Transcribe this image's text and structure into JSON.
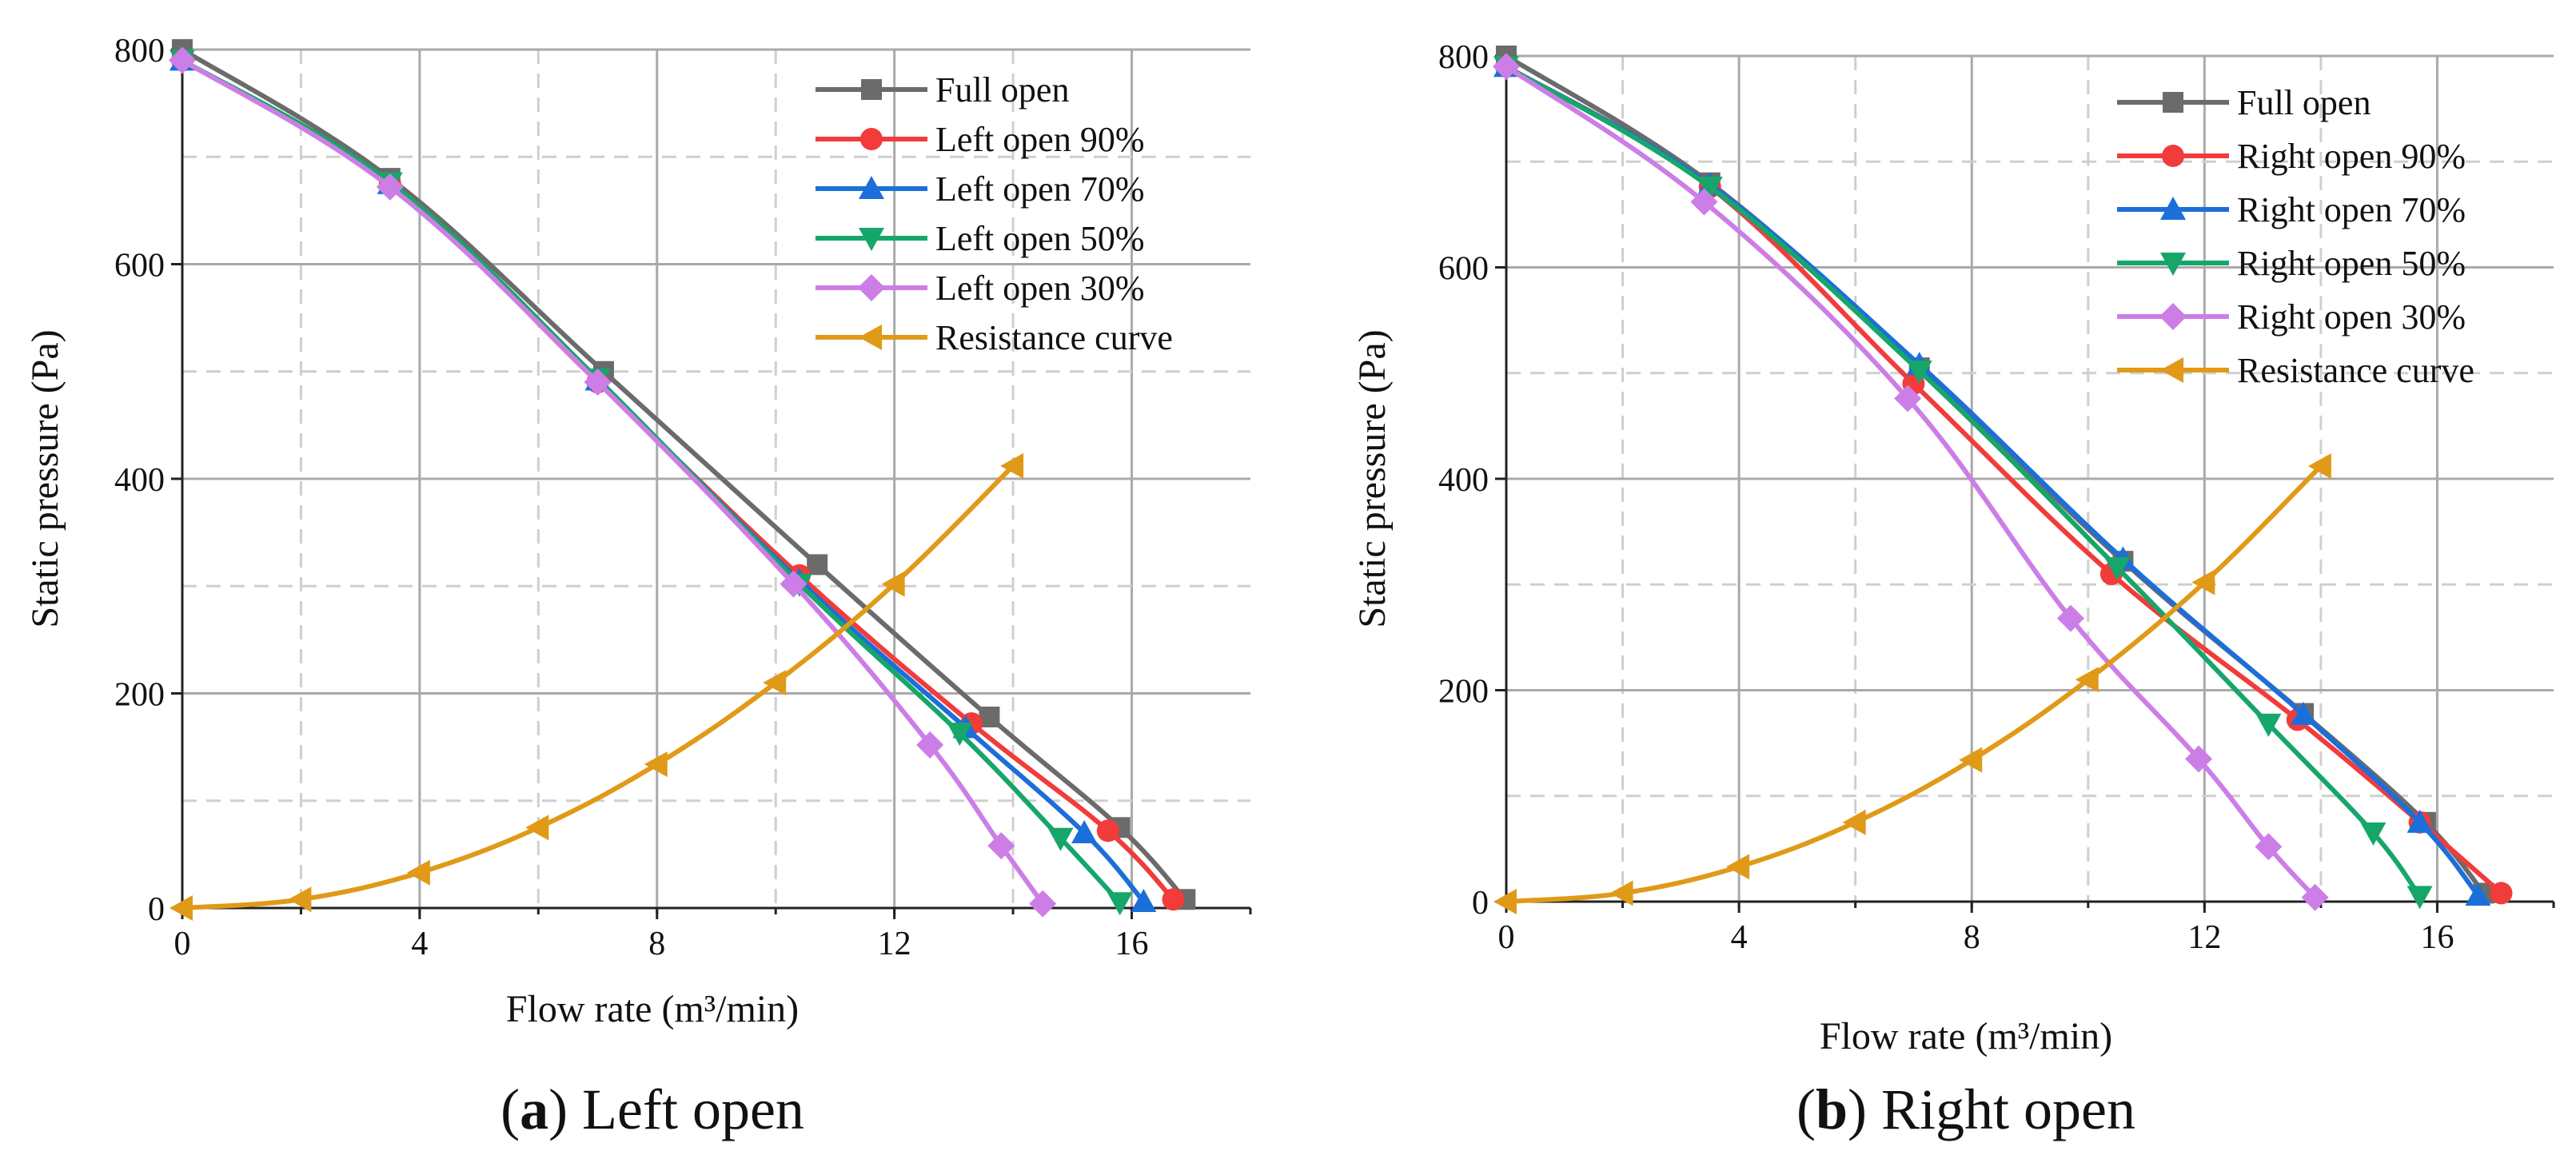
{
  "chart_data": [
    {
      "type": "line",
      "xlabel": "Flow rate (m³/min)",
      "ylabel": "Static pressure (Pa)",
      "xlim": [
        0,
        18
      ],
      "ylim": [
        0,
        800
      ],
      "xticks": [
        0,
        4,
        8,
        12,
        16
      ],
      "yticks": [
        0,
        200,
        400,
        600,
        800
      ],
      "grid": true,
      "legend_position": "top-right",
      "caption": {
        "label": "a",
        "text": "Left open"
      },
      "series": [
        {
          "name": "Full open",
          "color": "#6b6b6b",
          "marker": "square",
          "x": [
            0,
            3.5,
            7.1,
            10.7,
            13.6,
            15.8,
            16.9
          ],
          "y": [
            800,
            680,
            500,
            320,
            178,
            75,
            8
          ]
        },
        {
          "name": "Left open 90%",
          "color": "#f23b3b",
          "marker": "circle",
          "x": [
            0,
            3.5,
            7.0,
            10.4,
            13.3,
            15.6,
            16.7
          ],
          "y": [
            790,
            675,
            490,
            310,
            172,
            72,
            8
          ]
        },
        {
          "name": "Left open 70%",
          "color": "#1c6fd8",
          "marker": "triangle-up",
          "x": [
            0,
            3.5,
            7.0,
            10.4,
            13.2,
            15.2,
            16.2
          ],
          "y": [
            790,
            675,
            492,
            305,
            168,
            70,
            6
          ]
        },
        {
          "name": "Left open 50%",
          "color": "#17a66a",
          "marker": "triangle-down",
          "x": [
            0,
            3.5,
            7.0,
            10.4,
            13.1,
            14.8,
            15.8
          ],
          "y": [
            790,
            676,
            493,
            302,
            163,
            65,
            5
          ]
        },
        {
          "name": "Left open 30%",
          "color": "#cc7ee6",
          "marker": "diamond",
          "x": [
            0,
            3.5,
            7.0,
            10.3,
            12.6,
            13.8,
            14.5
          ],
          "y": [
            790,
            672,
            490,
            302,
            152,
            58,
            4
          ]
        },
        {
          "name": "Resistance curve",
          "color": "#e09a18",
          "marker": "triangle-left",
          "x": [
            0,
            2,
            4,
            6,
            8,
            10,
            12,
            14
          ],
          "y": [
            0,
            8,
            33,
            75,
            134,
            210,
            302,
            412
          ]
        }
      ]
    },
    {
      "type": "line",
      "xlabel": "Flow rate (m³/min)",
      "ylabel": "Static pressure (Pa)",
      "xlim": [
        0,
        18
      ],
      "ylim": [
        0,
        800
      ],
      "xticks": [
        0,
        4,
        8,
        12,
        16
      ],
      "yticks": [
        0,
        200,
        400,
        600,
        800
      ],
      "grid": true,
      "legend_position": "top-right",
      "caption": {
        "label": "b",
        "text": "Right open"
      },
      "series": [
        {
          "name": "Full open",
          "color": "#6b6b6b",
          "marker": "square",
          "x": [
            0,
            3.5,
            7.1,
            10.6,
            13.7,
            15.8,
            16.8
          ],
          "y": [
            800,
            680,
            505,
            322,
            178,
            75,
            8
          ]
        },
        {
          "name": "Right open 90%",
          "color": "#f23b3b",
          "marker": "circle",
          "x": [
            0,
            3.5,
            7.0,
            10.4,
            13.6,
            15.7,
            17.1
          ],
          "y": [
            790,
            676,
            490,
            310,
            172,
            75,
            8
          ]
        },
        {
          "name": "Right open 70%",
          "color": "#1c6fd8",
          "marker": "triangle-up",
          "x": [
            0,
            3.5,
            7.1,
            10.6,
            13.7,
            15.7,
            16.7
          ],
          "y": [
            790,
            678,
            508,
            324,
            177,
            75,
            6
          ]
        },
        {
          "name": "Right open 50%",
          "color": "#17a66a",
          "marker": "triangle-down",
          "x": [
            0,
            3.5,
            7.1,
            10.5,
            13.1,
            14.9,
            15.7
          ],
          "y": [
            790,
            676,
            502,
            316,
            168,
            65,
            5
          ]
        },
        {
          "name": "Right open 30%",
          "color": "#cc7ee6",
          "marker": "diamond",
          "x": [
            0,
            3.4,
            6.9,
            9.7,
            11.9,
            13.1,
            13.9
          ],
          "y": [
            790,
            662,
            476,
            268,
            135,
            52,
            4
          ]
        },
        {
          "name": "Resistance curve",
          "color": "#e09a18",
          "marker": "triangle-left",
          "x": [
            0,
            2,
            4,
            6,
            8,
            10,
            12,
            14
          ],
          "y": [
            0,
            8,
            33,
            75,
            134,
            210,
            302,
            412
          ]
        }
      ]
    }
  ]
}
